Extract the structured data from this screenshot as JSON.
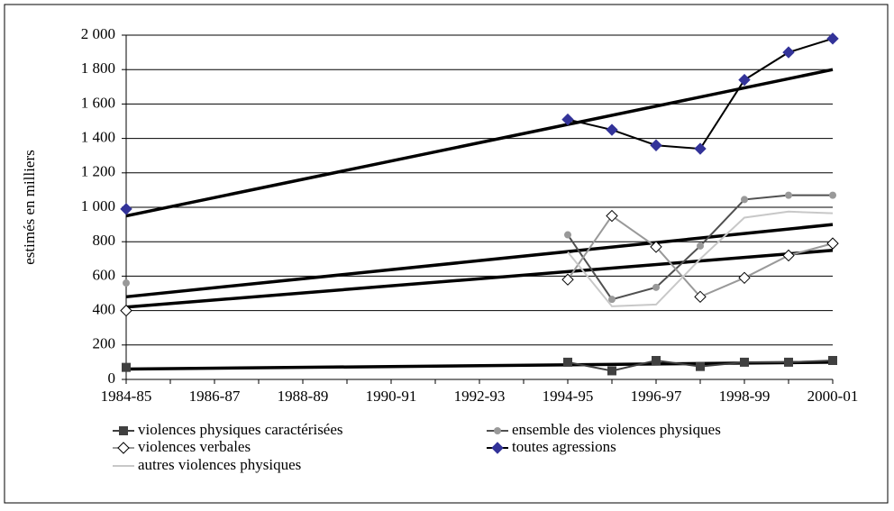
{
  "chart_data": {
    "type": "line",
    "y_label": "estimés en milliers",
    "categories": [
      "1984-85",
      null,
      "1986-87",
      null,
      "1988-89",
      null,
      "1990-91",
      null,
      "1992-93",
      null,
      "1994-95",
      null,
      "1996-97",
      null,
      "1998-99",
      null,
      "2000-01"
    ],
    "ylim": [
      0,
      2000
    ],
    "yticks": [
      0,
      200,
      400,
      600,
      800,
      {
        "value": 1000,
        "label": "1 000"
      },
      {
        "value": 1200,
        "label": "1 200"
      },
      {
        "value": 1400,
        "label": "1 400"
      },
      {
        "value": 1600,
        "label": "1 600"
      },
      {
        "value": 1800,
        "label": "1 800"
      },
      {
        "value": 2000,
        "label": "2 000"
      }
    ],
    "grid": true,
    "series": [
      {
        "name": "violences physiques caractérisées",
        "color": "#404040",
        "marker": "square",
        "marker_color": "#404040",
        "values": [
          70,
          null,
          null,
          null,
          null,
          null,
          null,
          null,
          null,
          null,
          100,
          50,
          110,
          75,
          100,
          100,
          110
        ]
      },
      {
        "name": "ensemble des violences physiques",
        "color": "#505050",
        "marker": "circle",
        "marker_color": "#999999",
        "values": [
          560,
          null,
          null,
          null,
          null,
          null,
          null,
          null,
          null,
          null,
          840,
          465,
          535,
          775,
          1045,
          1070,
          1070
        ]
      },
      {
        "name": "violences verbales",
        "color": "#999999",
        "marker": "diamond",
        "marker_color": "#ffffff",
        "values": [
          400,
          null,
          null,
          null,
          null,
          null,
          null,
          null,
          null,
          null,
          580,
          950,
          770,
          480,
          590,
          720,
          790
        ]
      },
      {
        "name": "toutes agressions",
        "color": "#000000",
        "marker": "diamond",
        "marker_color": "#333399",
        "values": [
          990,
          null,
          null,
          null,
          null,
          null,
          null,
          null,
          null,
          null,
          1510,
          1450,
          1360,
          1340,
          1740,
          1900,
          1980
        ]
      },
      {
        "name": "autres violences physiques",
        "color": "#c8c8c8",
        "marker": "none",
        "marker_color": "#c8c8c8",
        "values": [
          null,
          null,
          null,
          null,
          null,
          null,
          null,
          null,
          null,
          null,
          740,
          425,
          435,
          700,
          940,
          975,
          965
        ]
      }
    ],
    "trendlines": [
      [
        950,
        1800
      ],
      [
        480,
        900
      ],
      [
        420,
        750
      ],
      [
        60,
        100
      ]
    ],
    "trend_color": "#000000"
  }
}
